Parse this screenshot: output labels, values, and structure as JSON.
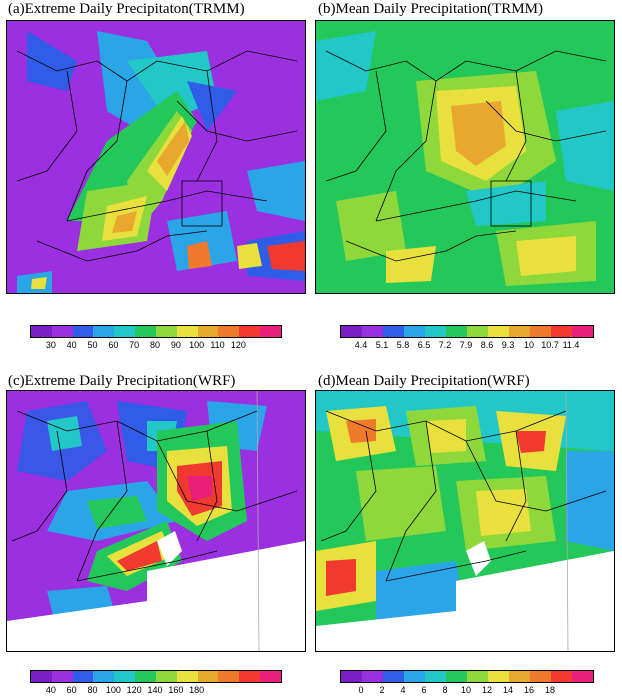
{
  "panels": [
    {
      "title": "(a)Extreme Daily Precipitaton(TRMM)",
      "ticks": [
        "30",
        "40",
        "50",
        "60",
        "70",
        "80",
        "90",
        "100",
        "110",
        "120"
      ]
    },
    {
      "title": "(b)Mean Daily Precipitation(TRMM)",
      "ticks": [
        "4.4",
        "5.1",
        "5.8",
        "6.5",
        "7.2",
        "7.9",
        "8.6",
        "9.3",
        "10",
        "10.7",
        "11.4"
      ]
    },
    {
      "title": "(c)Extreme Daily Precipitation(WRF)",
      "ticks": [
        "40",
        "60",
        "80",
        "100",
        "120",
        "140",
        "160",
        "180"
      ]
    },
    {
      "title": "(d)Mean Daily Precipitation(WRF)",
      "ticks": [
        "0",
        "2",
        "4",
        "6",
        "8",
        "10",
        "12",
        "14",
        "16",
        "18"
      ]
    }
  ],
  "colors": {
    "scale": [
      "#7a1fc8",
      "#9b30e0",
      "#2f5de8",
      "#2aa5e8",
      "#22c8c8",
      "#24c85a",
      "#8fd83c",
      "#e8e03c",
      "#e8a830",
      "#f07a2c",
      "#f03a30",
      "#e8207a"
    ]
  }
}
